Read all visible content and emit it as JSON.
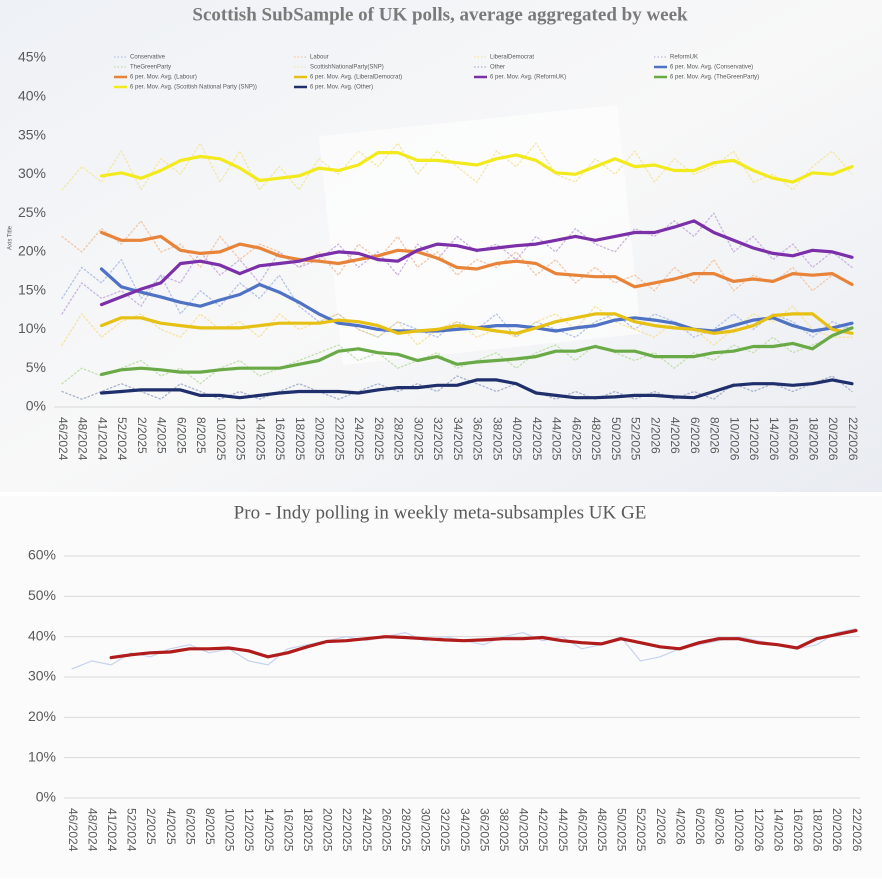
{
  "chart_data": [
    {
      "type": "line",
      "title": "Scottish SubSample of UK polls,  average aggregated by week",
      "ylabel": "Axis Title",
      "categories": [
        "46/2024",
        "48/2024",
        "41/2024",
        "52/2024",
        "2/2025",
        "4/2025",
        "6/2025",
        "8/2025",
        "10/2025",
        "12/2025",
        "14/2025",
        "16/2025",
        "18/2025",
        "20/2025",
        "22/2025",
        "24/2025",
        "26/2025",
        "28/2025",
        "30/2025",
        "32/2025",
        "34/2025",
        "36/2025",
        "38/2025",
        "40/2025",
        "42/2025",
        "44/2025",
        "46/2025",
        "48/2025",
        "50/2025",
        "52/2025",
        "2/2026",
        "4/2026",
        "6/2026",
        "8/2026",
        "10/2026",
        "12/2026",
        "14/2026",
        "16/2026",
        "18/2026",
        "20/2026",
        "22/2026"
      ],
      "ylim": [
        0,
        45
      ],
      "yticks": [
        {
          "value": 0,
          "label": "0%"
        },
        {
          "value": 5,
          "label": "5%"
        },
        {
          "value": 10,
          "label": "10%"
        },
        {
          "value": 15,
          "label": "15%"
        },
        {
          "value": 20,
          "label": "20%"
        },
        {
          "value": 25,
          "label": "25%"
        },
        {
          "value": 30,
          "label": "30%"
        },
        {
          "value": 35,
          "label": "35%"
        },
        {
          "value": 40,
          "label": "40%"
        },
        {
          "value": 45,
          "label": "45%"
        }
      ],
      "grid": false,
      "legend": "top",
      "series": [
        {
          "name": "Conservative",
          "color": "#b4c3e6",
          "line_style": "dotted",
          "values": [
            14,
            18,
            16,
            19,
            14,
            17,
            12,
            15,
            13,
            16,
            14,
            17,
            13,
            11,
            12,
            10,
            9,
            11,
            10,
            9,
            11,
            10,
            12,
            9,
            11,
            10,
            9,
            11,
            12,
            10,
            12,
            11,
            9,
            10,
            12,
            10,
            12,
            11,
            9,
            11,
            10
          ]
        },
        {
          "name": "Labour",
          "color": "#f2c6a6",
          "line_style": "dotted",
          "values": [
            22,
            20,
            23,
            21,
            24,
            20,
            21,
            18,
            22,
            19,
            21,
            20,
            18,
            20,
            17,
            21,
            19,
            22,
            18,
            20,
            17,
            19,
            18,
            20,
            17,
            19,
            16,
            18,
            16,
            17,
            15,
            18,
            16,
            19,
            15,
            17,
            16,
            18,
            15,
            17,
            16
          ]
        },
        {
          "name": "LiberalDemocrat",
          "color": "#f6e2a0",
          "line_style": "dotted",
          "values": [
            8,
            12,
            9,
            11,
            12,
            10,
            9,
            12,
            10,
            11,
            9,
            12,
            10,
            11,
            12,
            10,
            9,
            11,
            8,
            10,
            11,
            9,
            10,
            9,
            11,
            12,
            10,
            13,
            11,
            10,
            9,
            11,
            10,
            8,
            10,
            12,
            11,
            13,
            10,
            9,
            9
          ]
        },
        {
          "name": "ReformUK",
          "color": "#cbb4e0",
          "line_style": "dotted",
          "values": [
            12,
            16,
            14,
            15,
            13,
            17,
            16,
            20,
            17,
            19,
            16,
            20,
            18,
            19,
            21,
            18,
            20,
            17,
            21,
            19,
            22,
            20,
            21,
            19,
            22,
            20,
            23,
            21,
            20,
            23,
            22,
            24,
            22,
            25,
            20,
            22,
            19,
            21,
            18,
            20,
            18
          ]
        },
        {
          "name": "TheGreenParty",
          "color": "#c2dfb0",
          "line_style": "dotted",
          "values": [
            3,
            5,
            4,
            5,
            6,
            4,
            5,
            3,
            5,
            6,
            4,
            5,
            6,
            7,
            8,
            6,
            7,
            5,
            6,
            7,
            5,
            6,
            7,
            5,
            7,
            8,
            6,
            8,
            7,
            6,
            7,
            5,
            7,
            6,
            8,
            7,
            9,
            7,
            8,
            9,
            11
          ]
        },
        {
          "name": "ScottishNationalParty(SNP)",
          "color": "#f4e6a6",
          "line_style": "dotted",
          "values": [
            28,
            31,
            29,
            33,
            28,
            32,
            30,
            34,
            29,
            33,
            28,
            31,
            28,
            32,
            30,
            33,
            31,
            34,
            30,
            33,
            31,
            29,
            33,
            31,
            34,
            30,
            29,
            32,
            30,
            33,
            29,
            32,
            30,
            31,
            33,
            29,
            30,
            28,
            31,
            33,
            30
          ]
        },
        {
          "name": "Other",
          "color": "#a9b3cf",
          "line_style": "dotted",
          "values": [
            2,
            1,
            2,
            3,
            2,
            1,
            3,
            2,
            1,
            2,
            1,
            2,
            3,
            2,
            1,
            2,
            3,
            2,
            3,
            2,
            4,
            3,
            2,
            3,
            2,
            1,
            2,
            1,
            2,
            1,
            2,
            1,
            2,
            1,
            3,
            2,
            3,
            2,
            3,
            4,
            2
          ]
        },
        {
          "name": "6 per. Mov. Avg. (Conservative)",
          "color": "#4f72c4",
          "line_style": "solid",
          "values": [
            null,
            null,
            17.8,
            15.5,
            14.8,
            14.2,
            13.5,
            13.0,
            13.8,
            14.5,
            15.8,
            14.8,
            13.5,
            12.0,
            10.8,
            10.5,
            10.0,
            9.8,
            9.8,
            9.8,
            10.0,
            10.2,
            10.5,
            10.5,
            10.2,
            9.8,
            10.2,
            10.5,
            11.2,
            11.5,
            11.2,
            10.8,
            10.0,
            9.8,
            10.5,
            11.2,
            11.5,
            10.5,
            9.8,
            10.2,
            10.8
          ]
        },
        {
          "name": "6 per. Mov. Avg. (Labour)",
          "color": "#e8833a",
          "line_style": "solid",
          "values": [
            null,
            null,
            22.5,
            21.5,
            21.5,
            22.0,
            20.2,
            19.8,
            20.0,
            21.0,
            20.5,
            19.5,
            19.0,
            18.8,
            18.5,
            19.0,
            19.5,
            20.2,
            20.0,
            19.2,
            18.0,
            17.8,
            18.5,
            18.8,
            18.5,
            17.2,
            17.0,
            16.8,
            16.8,
            15.5,
            16.0,
            16.5,
            17.2,
            17.2,
            16.2,
            16.5,
            16.2,
            17.2,
            17.0,
            17.2,
            15.8
          ]
        },
        {
          "name": "6 per. Mov. Avg. (LiberalDemocrat)",
          "color": "#e6c014",
          "line_style": "solid",
          "values": [
            null,
            null,
            10.5,
            11.5,
            11.5,
            10.8,
            10.5,
            10.2,
            10.2,
            10.2,
            10.5,
            10.8,
            10.8,
            10.8,
            11.2,
            11.0,
            10.5,
            9.5,
            9.8,
            10.0,
            10.5,
            10.2,
            9.8,
            9.5,
            10.2,
            11.0,
            11.5,
            12.0,
            12.0,
            11.0,
            10.5,
            10.2,
            10.0,
            9.5,
            9.8,
            10.5,
            11.8,
            12.0,
            12.0,
            10.0,
            9.5
          ]
        },
        {
          "name": "6 per. Mov. Avg. (ReformUK)",
          "color": "#7b2fa8",
          "line_style": "solid",
          "values": [
            null,
            null,
            13.2,
            14.2,
            15.2,
            16.0,
            18.5,
            18.8,
            18.3,
            17.2,
            18.2,
            18.5,
            18.8,
            19.5,
            20.0,
            19.8,
            19.0,
            18.8,
            20.2,
            21.0,
            20.8,
            20.2,
            20.5,
            20.8,
            21.0,
            21.5,
            22.0,
            21.5,
            22.0,
            22.5,
            22.5,
            23.2,
            24.0,
            22.5,
            21.5,
            20.5,
            19.8,
            19.5,
            20.2,
            20.0,
            19.3
          ]
        },
        {
          "name": "6 per. Mov. Avg. (TheGreenParty)",
          "color": "#6aaa46",
          "line_style": "solid",
          "values": [
            null,
            null,
            4.2,
            4.8,
            5.0,
            4.8,
            4.5,
            4.5,
            4.8,
            5.0,
            5.0,
            5.0,
            5.5,
            6.0,
            7.2,
            7.5,
            7.0,
            6.8,
            6.0,
            6.5,
            5.5,
            5.8,
            6.0,
            6.2,
            6.5,
            7.2,
            7.2,
            7.8,
            7.2,
            7.2,
            6.5,
            6.5,
            6.5,
            7.0,
            7.2,
            7.8,
            7.8,
            8.2,
            7.5,
            9.2,
            10.2
          ]
        },
        {
          "name": "6 per. Mov. Avg. (Scottish National Party (SNP))",
          "color": "#f2ea1c",
          "line_style": "solid",
          "values": [
            null,
            null,
            29.8,
            30.2,
            29.5,
            30.5,
            31.8,
            32.3,
            32.0,
            30.8,
            29.2,
            29.5,
            29.8,
            30.8,
            30.5,
            31.2,
            32.8,
            32.8,
            31.8,
            31.8,
            31.5,
            31.2,
            32.0,
            32.5,
            31.8,
            30.2,
            30.0,
            31.0,
            32.0,
            31.0,
            31.2,
            30.5,
            30.5,
            31.5,
            31.8,
            30.5,
            29.5,
            29.0,
            30.2,
            30.0,
            31.0
          ]
        },
        {
          "name": "6 per. Mov. Avg. (Other)",
          "color": "#1f2f6b",
          "line_style": "solid",
          "values": [
            null,
            null,
            1.8,
            2.0,
            2.2,
            2.2,
            2.2,
            1.5,
            1.5,
            1.2,
            1.5,
            1.8,
            2.0,
            2.0,
            2.0,
            1.8,
            2.2,
            2.5,
            2.5,
            2.8,
            2.8,
            3.5,
            3.5,
            3.0,
            1.8,
            1.5,
            1.2,
            1.2,
            1.3,
            1.5,
            1.5,
            1.3,
            1.2,
            2.0,
            2.8,
            3.0,
            3.0,
            2.8,
            3.0,
            3.5,
            3.0
          ]
        }
      ]
    },
    {
      "type": "line",
      "title": "Pro - Indy polling in weekly meta-subsamples UK GE",
      "categories": [
        "46/2024",
        "48/2024",
        "41/2024",
        "52/2024",
        "2/2025",
        "4/2025",
        "6/2025",
        "8/2025",
        "10/2025",
        "12/2025",
        "14/2025",
        "16/2025",
        "18/2025",
        "20/2025",
        "22/2025",
        "24/2025",
        "26/2025",
        "28/2025",
        "30/2025",
        "32/2025",
        "34/2025",
        "36/2025",
        "38/2025",
        "40/2025",
        "42/2025",
        "44/2025",
        "46/2025",
        "48/2025",
        "50/2025",
        "52/2025",
        "2/2026",
        "4/2026",
        "6/2026",
        "8/2026",
        "10/2026",
        "12/2026",
        "14/2026",
        "16/2026",
        "18/2026",
        "20/2026",
        "22/2026"
      ],
      "ylim": [
        0,
        60
      ],
      "yticks": [
        {
          "value": 0,
          "label": "0%"
        },
        {
          "value": 10,
          "label": "10%"
        },
        {
          "value": 20,
          "label": "20%"
        },
        {
          "value": 30,
          "label": "30%"
        },
        {
          "value": 40,
          "label": "40%"
        },
        {
          "value": 50,
          "label": "50%"
        },
        {
          "value": 60,
          "label": "60%"
        }
      ],
      "grid": true,
      "series": [
        {
          "color": "#c7d3ec",
          "line_style": "thin",
          "values": [
            32,
            34,
            33,
            36,
            35,
            37,
            38,
            36,
            37,
            34,
            33,
            37,
            38,
            39,
            40,
            39,
            40,
            41,
            39,
            40,
            39,
            38,
            40,
            41,
            39,
            40,
            37,
            38,
            40,
            34,
            35,
            37,
            38,
            39,
            40,
            39,
            38,
            37,
            38,
            41,
            42
          ]
        },
        {
          "color": "#b01c1c",
          "line_style": "solid",
          "values": [
            null,
            null,
            34.8,
            35.5,
            36.0,
            36.2,
            37.0,
            37.0,
            37.2,
            36.5,
            35.0,
            36.0,
            37.5,
            38.8,
            39.0,
            39.5,
            40.0,
            39.8,
            39.5,
            39.2,
            39.0,
            39.2,
            39.5,
            39.5,
            39.8,
            39.0,
            38.5,
            38.2,
            39.5,
            38.5,
            37.5,
            37.0,
            38.5,
            39.5,
            39.5,
            38.5,
            38.0,
            37.2,
            39.5,
            40.5,
            41.5
          ]
        }
      ]
    }
  ]
}
